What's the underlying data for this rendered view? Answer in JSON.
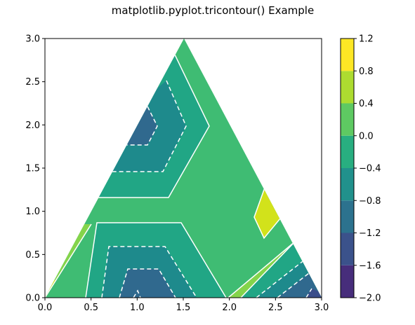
{
  "chart_data": {
    "type": "tricontour",
    "title": "matplotlib.pyplot.tricontour() Example",
    "xlabel": "",
    "ylabel": "",
    "xlim": [
      0.0,
      3.0
    ],
    "ylim": [
      0.0,
      3.0
    ],
    "xticks": [
      "0.0",
      "0.5",
      "1.0",
      "1.5",
      "2.0",
      "2.5",
      "3.0"
    ],
    "yticks": [
      "0.0",
      "0.5",
      "1.0",
      "1.5",
      "2.0",
      "2.5",
      "3.0"
    ],
    "colorbar": {
      "levels": [
        -2.0,
        -1.6,
        -1.2,
        -0.8,
        -0.4,
        0.0,
        0.4,
        0.8,
        1.2
      ],
      "ticklabels": [
        "−2.0",
        "−1.6",
        "−1.2",
        "−0.8",
        "−0.4",
        "0.0",
        "0.4",
        "0.8",
        "1.2"
      ],
      "colors": [
        "#472d7b",
        "#3b528b",
        "#2c728e",
        "#21918c",
        "#28ae80",
        "#5ec962",
        "#addc30",
        "#fde725"
      ]
    },
    "triangle_vertices": [
      [
        0.0,
        0.0
      ],
      [
        1.5,
        3.0
      ],
      [
        3.0,
        0.0
      ]
    ],
    "contour_line_color": "#ffffff",
    "negative_levels_linestyle": "dashed",
    "grid": false,
    "legend": "none"
  }
}
